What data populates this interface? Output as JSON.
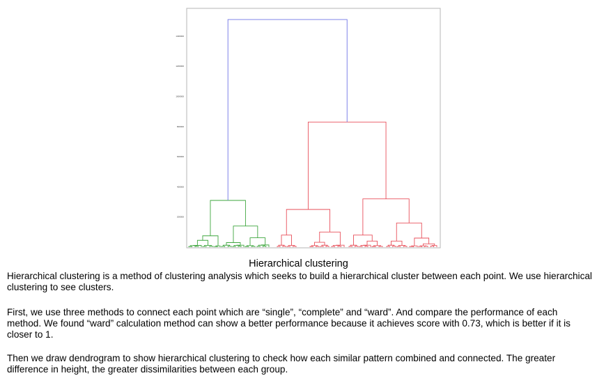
{
  "chart_data": {
    "type": "dendrogram",
    "title": "",
    "xlabel": "",
    "ylabel": "",
    "ylim": [
      0,
      1600000
    ],
    "yticks": [
      200000,
      400000,
      600000,
      800000,
      1000000,
      1200000,
      1400000
    ],
    "ytick_labels": [
      "200000",
      "400000",
      "600000",
      "800000",
      "1000000",
      "1200000",
      "1400000"
    ],
    "grid": false,
    "colors": {
      "green_cluster": "#3fa63f",
      "red_cluster": "#e8505b",
      "link_above_threshold": "#6f74e6"
    },
    "merges": [
      {
        "level": "root",
        "height": 1510000,
        "left_cluster": "green",
        "right_cluster": "red"
      },
      {
        "level": "red",
        "height": 830000
      },
      {
        "level": "green",
        "height": 310000
      },
      {
        "level": "red-left",
        "height": 250000
      },
      {
        "level": "red-right",
        "height": 320000
      },
      {
        "level": "green-right",
        "height": 140000
      },
      {
        "level": "red-right-right",
        "height": 160000
      }
    ]
  },
  "caption": "Hierarchical clustering",
  "paragraphs": [
    "Hierarchical clustering is a method of clustering analysis which seeks to build a hierarchical cluster between each point. We use hierarchical clustering to see clusters.",
    "First, we use three methods to connect each point which are “single”, “complete” and “ward”. And compare the performance of each method. We found “ward” calculation method can show a better performance because it achieves score with 0.73, which is better if it is closer to 1.",
    "Then we draw dendrogram to show hierarchical clustering to check how each similar pattern combined and connected. The greater difference in height, the greater dissimilarities between each group."
  ]
}
